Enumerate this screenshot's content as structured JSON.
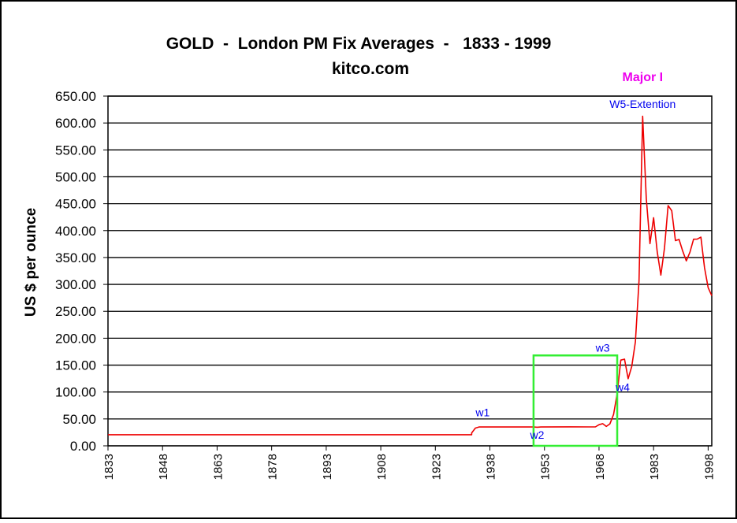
{
  "chart_data": {
    "type": "line",
    "title": "GOLD  -  London PM Fix Averages  -   1833 - 1999",
    "subtitle": "kitco.com",
    "xlabel": "",
    "ylabel": "US $ per ounce",
    "xlim": [
      1833,
      1999
    ],
    "ylim": [
      0,
      650
    ],
    "x_ticks": [
      "1833",
      "1848",
      "1863",
      "1878",
      "1893",
      "1908",
      "1923",
      "1938",
      "1953",
      "1968",
      "1983",
      "1998"
    ],
    "y_ticks": [
      "0.00",
      "50.00",
      "100.00",
      "150.00",
      "200.00",
      "250.00",
      "300.00",
      "350.00",
      "400.00",
      "450.00",
      "500.00",
      "550.00",
      "600.00",
      "650.00"
    ],
    "grid": true,
    "series_color": "#ee0000",
    "box_color": "#33ee33",
    "series": [
      {
        "points": [
          [
            1833,
            20.65
          ],
          [
            1933,
            20.65
          ],
          [
            1933,
            24
          ],
          [
            1934,
            33
          ],
          [
            1935,
            35
          ],
          [
            1940,
            35
          ],
          [
            1950,
            35
          ],
          [
            1951,
            34.5
          ],
          [
            1952,
            35
          ],
          [
            1960,
            35.3
          ],
          [
            1965,
            35.1
          ],
          [
            1967,
            35.2
          ],
          [
            1968,
            39.3
          ],
          [
            1969,
            41.1
          ],
          [
            1970,
            36
          ],
          [
            1971,
            40.8
          ],
          [
            1972,
            58.2
          ],
          [
            1973,
            97.3
          ],
          [
            1974,
            159.3
          ],
          [
            1975,
            161
          ],
          [
            1976,
            124.8
          ],
          [
            1977,
            147.7
          ],
          [
            1978,
            193.2
          ],
          [
            1979,
            306.7
          ],
          [
            1980,
            612.6
          ],
          [
            1981,
            460
          ],
          [
            1982,
            375.8
          ],
          [
            1983,
            424
          ],
          [
            1984,
            360.5
          ],
          [
            1985,
            317.3
          ],
          [
            1986,
            367.5
          ],
          [
            1987,
            446.5
          ],
          [
            1988,
            437
          ],
          [
            1989,
            381.4
          ],
          [
            1990,
            383.5
          ],
          [
            1991,
            362.1
          ],
          [
            1992,
            343.8
          ],
          [
            1993,
            359.8
          ],
          [
            1994,
            384
          ],
          [
            1995,
            384.1
          ],
          [
            1996,
            387.8
          ],
          [
            1997,
            331
          ],
          [
            1998,
            294
          ],
          [
            1999,
            279
          ]
        ]
      }
    ],
    "highlight_box": {
      "x0": 1950,
      "x1": 1973,
      "y0": 0,
      "y1": 168
    },
    "annotations": [
      {
        "text": "w1",
        "x": 1936,
        "y": 55,
        "color": "#0000ee"
      },
      {
        "text": "w2",
        "x": 1951,
        "y": 13,
        "color": "#0000ee"
      },
      {
        "text": "w3",
        "x": 1969,
        "y": 175,
        "color": "#0000ee"
      },
      {
        "text": "w4",
        "x": 1974.5,
        "y": 102,
        "color": "#0000ee"
      },
      {
        "text": "W5-Extention",
        "x": 1980,
        "y": 628,
        "color": "#0000ee"
      },
      {
        "text": "Major I",
        "x": 1980,
        "y": 678,
        "color": "#ee00ee"
      }
    ]
  }
}
